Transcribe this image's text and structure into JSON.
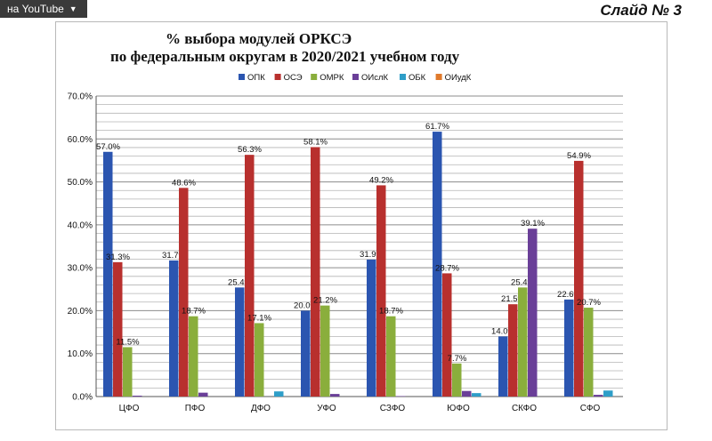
{
  "overlay": {
    "youtube_label": "на YouTube",
    "slide_label": "Слайд № 3"
  },
  "chart_data": {
    "type": "bar",
    "title_line1": "% выбора модулей ОРКСЭ",
    "title_line2": "по федеральным округам в 2020/2021 учебном году",
    "categories": [
      "ЦФО",
      "ПФО",
      "ДФО",
      "УФО",
      "СЗФО",
      "ЮФО",
      "СКФО",
      "СФО"
    ],
    "ylim": [
      0,
      70
    ],
    "yticks": [
      "0.0%",
      "10.0%",
      "20.0%",
      "30.0%",
      "40.0%",
      "50.0%",
      "60.0%",
      "70.0%"
    ],
    "ytick_values": [
      0,
      10,
      20,
      30,
      40,
      50,
      60,
      70
    ],
    "grid": true,
    "legend_position": "top",
    "series": [
      {
        "name": "ОПК",
        "color": "#2b55b0",
        "values": [
          57.0,
          31.7,
          25.4,
          20.0,
          31.9,
          61.7,
          14.0,
          22.6
        ],
        "labels": [
          "57.0%",
          "31.7%",
          "25.4%",
          "20.0%",
          "31.9%",
          "61.7%",
          "14.0%",
          "22.6%"
        ]
      },
      {
        "name": "ОСЭ",
        "color": "#b8302e",
        "values": [
          31.3,
          48.6,
          56.3,
          58.1,
          49.2,
          28.7,
          21.5,
          54.9
        ],
        "labels": [
          "31.3%",
          "48.6%",
          "56.3%",
          "58.1%",
          "49.2%",
          "28.7%",
          "21.5%",
          "54.9%"
        ]
      },
      {
        "name": "ОМРК",
        "color": "#8aae3c",
        "values": [
          11.5,
          18.7,
          17.1,
          21.2,
          18.7,
          7.7,
          25.4,
          20.7
        ],
        "labels": [
          "11.5%",
          "18.7%",
          "17.1%",
          "21.2%",
          "18.7%",
          "7.7%",
          "25.4%",
          "20.7%"
        ]
      },
      {
        "name": "ОИслК",
        "color": "#6a3f98",
        "values": [
          0.2,
          0.9,
          0.0,
          0.6,
          0.1,
          1.3,
          39.1,
          0.4
        ],
        "labels": [
          "",
          "",
          "",
          "",
          "",
          "",
          "39.1%",
          ""
        ]
      },
      {
        "name": "ОБК",
        "color": "#2e9ec8",
        "values": [
          0.0,
          0.0,
          1.2,
          0.0,
          0.0,
          0.8,
          0.0,
          1.4
        ],
        "labels": [
          "",
          "",
          "",
          "",
          "",
          "",
          "",
          ""
        ]
      },
      {
        "name": "ОИудК",
        "color": "#e07a2c",
        "values": [
          0,
          0,
          0,
          0,
          0,
          0,
          0,
          0
        ],
        "labels": [
          "",
          "",
          "",
          "",
          "",
          "",
          "",
          ""
        ]
      }
    ]
  }
}
